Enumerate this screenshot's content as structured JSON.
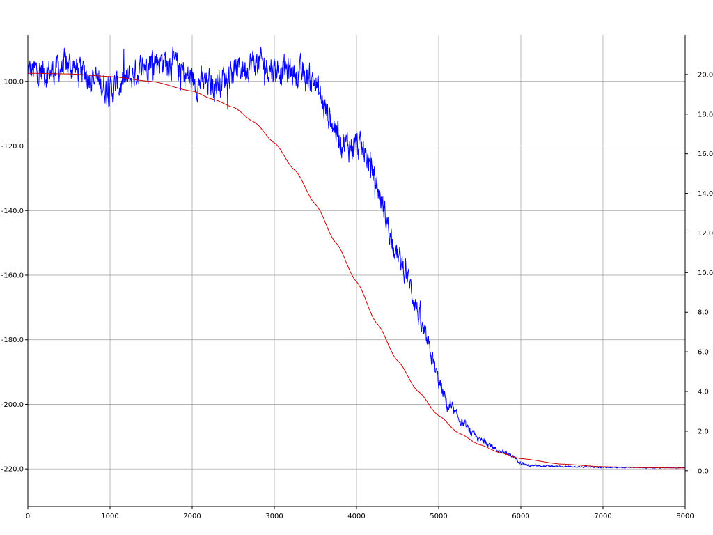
{
  "chart_data": {
    "type": "line",
    "title": "",
    "xlabel": "",
    "ylabel_left": "",
    "ylabel_right": "",
    "grid": true,
    "xlim": [
      0,
      8000
    ],
    "ylim_left": [
      -231.6,
      -85.6
    ],
    "ylim_right": [
      -1.8,
      22.0
    ],
    "x_ticks": [
      0,
      1000,
      2000,
      3000,
      4000,
      5000,
      6000,
      7000,
      8000
    ],
    "x_tick_labels": [
      "0",
      "1000",
      "2000",
      "3000",
      "4000",
      "5000",
      "6000",
      "7000",
      "8000"
    ],
    "y_left_ticks": [
      -100,
      -120,
      -140,
      -160,
      -180,
      -200,
      -220
    ],
    "y_left_tick_labels": [
      "-100.0",
      "-120.0",
      "-140.0",
      "-160.0",
      "-180.0",
      "-200.0",
      "-220.0"
    ],
    "y_right_ticks": [
      20,
      18,
      16,
      14,
      12,
      10,
      8,
      6,
      4,
      2,
      0
    ],
    "y_right_tick_labels": [
      "20.0",
      "18.0",
      "16.0",
      "14.0",
      "12.0",
      "10.0",
      "8.0",
      "6.0",
      "4.0",
      "2.0",
      "0.0"
    ],
    "series": [
      {
        "color": "#0000ff",
        "axis": "left",
        "style": "noisy",
        "x": [
          0,
          250,
          500,
          750,
          1000,
          1250,
          1500,
          1750,
          2000,
          2250,
          2500,
          2750,
          3000,
          3250,
          3500,
          3600,
          3700,
          3800,
          3900,
          4000,
          4100,
          4200,
          4300,
          4400,
          4500,
          4600,
          4700,
          4800,
          4900,
          5000,
          5100,
          5200,
          5300,
          5400,
          5500,
          5600,
          5700,
          5800,
          5900,
          6000,
          6100,
          6500,
          7000,
          7500,
          8000
        ],
        "y": [
          -97,
          -97,
          -95,
          -98,
          -103,
          -99,
          -93,
          -94,
          -100,
          -101,
          -97,
          -94,
          -96,
          -97,
          -100,
          -108,
          -112,
          -118,
          -120,
          -120,
          -122,
          -128,
          -137,
          -146,
          -154,
          -159,
          -167,
          -177,
          -184,
          -193,
          -200,
          -203,
          -206,
          -209,
          -211,
          -212,
          -214,
          -215,
          -216,
          -218,
          -219,
          -219.3,
          -219.5,
          -219.6,
          -219.6
        ],
        "amplitude": [
          6,
          6,
          6,
          6,
          6,
          6,
          6,
          6,
          6,
          6,
          6,
          6,
          6,
          6,
          6,
          6,
          6,
          6,
          6,
          6,
          5.5,
          5.5,
          5,
          5,
          5,
          5,
          5,
          4.5,
          4,
          3.5,
          3,
          2,
          1.8,
          1.5,
          1.3,
          1.1,
          1,
          0.9,
          0.8,
          0.7,
          0.5,
          0.3,
          0.25,
          0.2,
          0.2
        ]
      },
      {
        "color": "#cc0000",
        "axis": "left",
        "style": "smooth",
        "x": [
          0,
          500,
          1000,
          1500,
          2000,
          2250,
          2500,
          2750,
          3000,
          3250,
          3500,
          3750,
          4000,
          4250,
          4500,
          4750,
          5000,
          5250,
          5500,
          5750,
          6000,
          6500,
          7000,
          7500,
          8000
        ],
        "y": [
          -97.5,
          -97.7,
          -98.5,
          -100,
          -103,
          -105.5,
          -108,
          -112.5,
          -119,
          -127.5,
          -138,
          -150,
          -162,
          -175,
          -186.5,
          -196,
          -203.5,
          -209,
          -212.5,
          -215,
          -216.8,
          -218.5,
          -219.3,
          -219.6,
          -219.7
        ]
      }
    ]
  }
}
